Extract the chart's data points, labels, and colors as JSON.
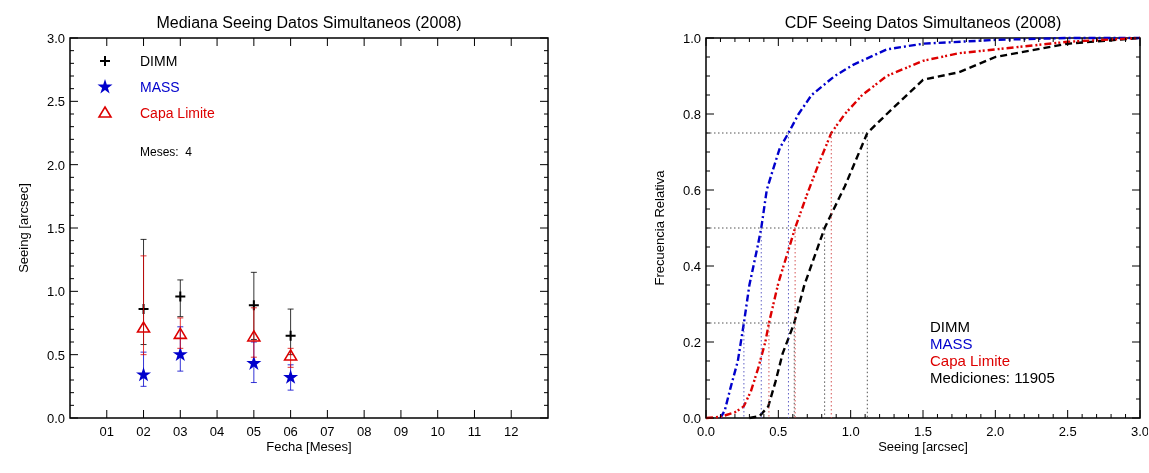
{
  "chart_data": [
    {
      "type": "scatter",
      "title": "Mediana Seeing Datos Simultaneos (2008)",
      "xlabel": "Fecha [Meses]",
      "ylabel": "Seeing [arcsec]",
      "x": [
        2,
        3,
        5,
        6
      ],
      "xlim": [
        0,
        13
      ],
      "xticks": [
        {
          "value": 1,
          "label": "01"
        },
        {
          "value": 2,
          "label": "02"
        },
        {
          "value": 3,
          "label": "03"
        },
        {
          "value": 4,
          "label": "04"
        },
        {
          "value": 5,
          "label": "05"
        },
        {
          "value": 6,
          "label": "06"
        },
        {
          "value": 7,
          "label": "07"
        },
        {
          "value": 8,
          "label": "08"
        },
        {
          "value": 9,
          "label": "09"
        },
        {
          "value": 10,
          "label": "10"
        },
        {
          "value": 11,
          "label": "11"
        },
        {
          "value": 12,
          "label": "12"
        }
      ],
      "ylim": [
        0,
        3
      ],
      "yticks": [
        {
          "value": 0,
          "label": "0.0"
        },
        {
          "value": 0.5,
          "label": "0.5"
        },
        {
          "value": 1,
          "label": "1.0"
        },
        {
          "value": 1.5,
          "label": "1.5"
        },
        {
          "value": 2,
          "label": "2.0"
        },
        {
          "value": 2.5,
          "label": "2.5"
        },
        {
          "value": 3,
          "label": "3.0"
        },
        {
          "value": 0.1,
          "label": null
        },
        {
          "value": 0.2,
          "label": null
        },
        {
          "value": 0.3,
          "label": null
        },
        {
          "value": 0.4,
          "label": null
        },
        {
          "value": 0.6,
          "label": null
        },
        {
          "value": 0.7,
          "label": null
        },
        {
          "value": 0.8,
          "label": null
        },
        {
          "value": 0.9,
          "label": null
        },
        {
          "value": 1.1,
          "label": null
        },
        {
          "value": 1.2,
          "label": null
        },
        {
          "value": 1.3,
          "label": null
        },
        {
          "value": 1.4,
          "label": null
        },
        {
          "value": 1.6,
          "label": null
        },
        {
          "value": 1.7,
          "label": null
        },
        {
          "value": 1.8,
          "label": null
        },
        {
          "value": 1.9,
          "label": null
        },
        {
          "value": 2.1,
          "label": null
        },
        {
          "value": 2.2,
          "label": null
        },
        {
          "value": 2.3,
          "label": null
        },
        {
          "value": 2.4,
          "label": null
        },
        {
          "value": 2.6,
          "label": null
        },
        {
          "value": 2.7,
          "label": null
        },
        {
          "value": 2.8,
          "label": null
        },
        {
          "value": 2.9,
          "label": null
        }
      ],
      "series": [
        {
          "name": "DIMM",
          "color": "#000000",
          "marker": "cross",
          "values": [
            0.86,
            0.96,
            0.89,
            0.65
          ],
          "errors": [
            [
              0.58,
              1.41
            ],
            [
              0.8,
              1.09
            ],
            [
              0.62,
              1.15
            ],
            [
              0.5,
              0.86
            ]
          ]
        },
        {
          "name": "MASS",
          "color": "#0000cc",
          "marker": "star",
          "values": [
            0.34,
            0.5,
            0.43,
            0.32
          ],
          "errors": [
            [
              0.25,
              0.52
            ],
            [
              0.37,
              0.72
            ],
            [
              0.28,
              0.6
            ],
            [
              0.22,
              0.42
            ]
          ]
        },
        {
          "name": "Capa Limite",
          "color": "#dd0000",
          "marker": "triangle",
          "values": [
            0.71,
            0.66,
            0.64,
            0.49
          ],
          "errors": [
            [
              0.5,
              1.28
            ],
            [
              0.55,
              0.79
            ],
            [
              0.48,
              0.87
            ],
            [
              0.4,
              0.55
            ]
          ]
        }
      ],
      "legend": "top left",
      "grid": false,
      "annotations": [
        "Meses:  4"
      ]
    },
    {
      "type": "line",
      "title": "CDF Seeing Datos Simultaneos (2008)",
      "xlabel": "Seeing [arcsec]",
      "ylabel": "Frecuencia Relativa",
      "xlim": [
        0,
        3
      ],
      "xticks": [
        {
          "value": 0,
          "label": "0.0"
        },
        {
          "value": 0.5,
          "label": "0.5"
        },
        {
          "value": 1,
          "label": "1.0"
        },
        {
          "value": 1.5,
          "label": "1.5"
        },
        {
          "value": 2,
          "label": "2.0"
        },
        {
          "value": 2.5,
          "label": "2.5"
        },
        {
          "value": 3,
          "label": "3.0"
        },
        {
          "value": 0.1,
          "label": null
        },
        {
          "value": 0.2,
          "label": null
        },
        {
          "value": 0.3,
          "label": null
        },
        {
          "value": 0.4,
          "label": null
        },
        {
          "value": 0.6,
          "label": null
        },
        {
          "value": 0.7,
          "label": null
        },
        {
          "value": 0.8,
          "label": null
        },
        {
          "value": 0.9,
          "label": null
        },
        {
          "value": 1.1,
          "label": null
        },
        {
          "value": 1.2,
          "label": null
        },
        {
          "value": 1.3,
          "label": null
        },
        {
          "value": 1.4,
          "label": null
        },
        {
          "value": 1.6,
          "label": null
        },
        {
          "value": 1.7,
          "label": null
        },
        {
          "value": 1.8,
          "label": null
        },
        {
          "value": 1.9,
          "label": null
        },
        {
          "value": 2.1,
          "label": null
        },
        {
          "value": 2.2,
          "label": null
        },
        {
          "value": 2.3,
          "label": null
        },
        {
          "value": 2.4,
          "label": null
        },
        {
          "value": 2.6,
          "label": null
        },
        {
          "value": 2.7,
          "label": null
        },
        {
          "value": 2.8,
          "label": null
        },
        {
          "value": 2.9,
          "label": null
        }
      ],
      "ylim": [
        0,
        1
      ],
      "yticks": [
        {
          "value": 0,
          "label": "0.0"
        },
        {
          "value": 0.2,
          "label": "0.2"
        },
        {
          "value": 0.4,
          "label": "0.4"
        },
        {
          "value": 0.6,
          "label": "0.6"
        },
        {
          "value": 0.8,
          "label": "0.8"
        },
        {
          "value": 1,
          "label": "1.0"
        },
        {
          "value": 0.05,
          "label": null
        },
        {
          "value": 0.1,
          "label": null
        },
        {
          "value": 0.15,
          "label": null
        },
        {
          "value": 0.25,
          "label": null
        },
        {
          "value": 0.3,
          "label": null
        },
        {
          "value": 0.35,
          "label": null
        },
        {
          "value": 0.45,
          "label": null
        },
        {
          "value": 0.5,
          "label": null
        },
        {
          "value": 0.55,
          "label": null
        },
        {
          "value": 0.65,
          "label": null
        },
        {
          "value": 0.7,
          "label": null
        },
        {
          "value": 0.75,
          "label": null
        },
        {
          "value": 0.85,
          "label": null
        },
        {
          "value": 0.9,
          "label": null
        },
        {
          "value": 0.95,
          "label": null
        }
      ],
      "series": [
        {
          "name": "DIMM",
          "color": "#000000",
          "line_style": "dashed",
          "x": [
            0.3,
            0.37,
            0.43,
            0.48,
            0.53,
            0.61,
            0.68,
            0.82,
            0.96,
            1.115,
            1.25,
            1.5,
            1.75,
            2.0,
            2.5,
            3.0
          ],
          "values": [
            0,
            0.005,
            0.03,
            0.095,
            0.17,
            0.25,
            0.35,
            0.5,
            0.61,
            0.75,
            0.8,
            0.89,
            0.91,
            0.95,
            0.985,
            1.0
          ]
        },
        {
          "name": "MASS",
          "color": "#0000cc",
          "line_style": "dashed",
          "x": [
            0.1,
            0.13,
            0.17,
            0.22,
            0.262,
            0.3,
            0.356,
            0.382,
            0.42,
            0.46,
            0.51,
            0.57,
            0.64,
            0.73,
            0.89,
            1.02,
            1.25,
            1.5,
            2.0,
            2.5,
            3.0
          ],
          "values": [
            0,
            0.02,
            0.08,
            0.15,
            0.25,
            0.35,
            0.45,
            0.5,
            0.6,
            0.65,
            0.71,
            0.75,
            0.8,
            0.85,
            0.9,
            0.93,
            0.97,
            0.985,
            0.995,
            1.0,
            1.0
          ]
        },
        {
          "name": "Capa Limite",
          "color": "#dd0000",
          "line_style": "dashed",
          "x": [
            0,
            0.1,
            0.2,
            0.26,
            0.31,
            0.36,
            0.41,
            0.435,
            0.5,
            0.56,
            0.616,
            0.7,
            0.78,
            0.866,
            0.96,
            1.08,
            1.25,
            1.5,
            1.75,
            2.0,
            2.5,
            3.0
          ],
          "values": [
            0,
            0.003,
            0.015,
            0.03,
            0.07,
            0.13,
            0.2,
            0.25,
            0.355,
            0.43,
            0.5,
            0.59,
            0.67,
            0.75,
            0.8,
            0.85,
            0.9,
            0.94,
            0.96,
            0.97,
            0.99,
            1.0
          ]
        },
        {
          "color": "#404040",
          "line_style": "dotted",
          "x": [
            0,
            0.61,
            0.61
          ],
          "values": [
            0.25,
            0.25,
            0
          ]
        },
        {
          "color": "#404040",
          "line_style": "dotted",
          "x": [
            0,
            0.82,
            0.82
          ],
          "values": [
            0.5,
            0.5,
            0
          ]
        },
        {
          "color": "#404040",
          "line_style": "dotted",
          "x": [
            0,
            1.115,
            1.115
          ],
          "values": [
            0.75,
            0.75,
            0
          ]
        },
        {
          "color": "#5050c0",
          "line_style": "dotted",
          "x": [
            0.262,
            0.262
          ],
          "values": [
            0.25,
            0
          ]
        },
        {
          "color": "#5050c0",
          "line_style": "dotted",
          "x": [
            0.382,
            0.382
          ],
          "values": [
            0.5,
            0
          ]
        },
        {
          "color": "#5050c0",
          "line_style": "dotted",
          "x": [
            0.57,
            0.57
          ],
          "values": [
            0.75,
            0
          ]
        },
        {
          "color": "#d04040",
          "line_style": "dotted",
          "x": [
            0.435,
            0.435
          ],
          "values": [
            0.25,
            0
          ]
        },
        {
          "color": "#d04040",
          "line_style": "dotted",
          "x": [
            0.616,
            0.616
          ],
          "values": [
            0.5,
            0
          ]
        },
        {
          "color": "#d04040",
          "line_style": "dotted",
          "x": [
            0.866,
            0.866
          ],
          "values": [
            0.75,
            0
          ]
        }
      ],
      "legend": "bottom right",
      "grid": false,
      "annotations": [
        "Mediciones: 11905"
      ]
    }
  ]
}
